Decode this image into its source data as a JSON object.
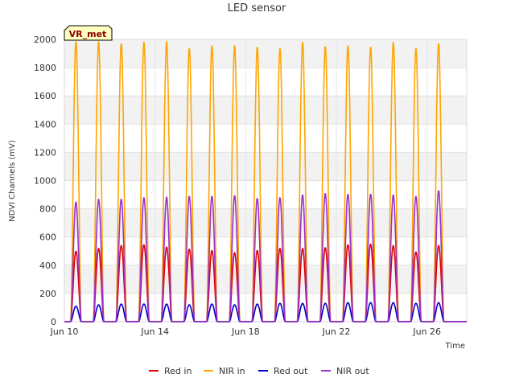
{
  "chart_data": {
    "type": "line",
    "title": "LED sensor",
    "xlabel": "Time",
    "ylabel": "NDVI Channels (mV)",
    "ylim": [
      0,
      2000
    ],
    "yticks": [
      0,
      200,
      400,
      600,
      800,
      1000,
      1200,
      1400,
      1600,
      1800,
      2000
    ],
    "xlim": [
      "2023-06-10",
      "2023-06-27T18:00"
    ],
    "xticks": [
      {
        "date": "2023-06-10",
        "label": "Jun 10"
      },
      {
        "date": "2023-06-14",
        "label": "Jun 14"
      },
      {
        "date": "2023-06-18",
        "label": "Jun 18"
      },
      {
        "date": "2023-06-22",
        "label": "Jun 22"
      },
      {
        "date": "2023-06-26",
        "label": "Jun 26"
      }
    ],
    "grid": true,
    "legend_position": "bottom",
    "badge": "VR_met",
    "x": [
      "2023-06-10",
      "2023-06-11",
      "2023-06-12",
      "2023-06-13",
      "2023-06-14",
      "2023-06-15",
      "2023-06-16",
      "2023-06-17",
      "2023-06-18",
      "2023-06-19",
      "2023-06-20",
      "2023-06-21",
      "2023-06-22",
      "2023-06-23",
      "2023-06-24",
      "2023-06-25",
      "2023-06-26",
      "2023-06-27"
    ],
    "series": [
      {
        "name": "Red in",
        "color": "#dd0000",
        "values": [
          500,
          520,
          540,
          545,
          530,
          515,
          505,
          490,
          505,
          520,
          520,
          525,
          545,
          550,
          540,
          495,
          540,
          0
        ]
      },
      {
        "name": "NIR in",
        "color": "#ffa500",
        "values": [
          1990,
          1990,
          1975,
          1985,
          1990,
          1940,
          1960,
          1960,
          1950,
          1940,
          1985,
          1955,
          1960,
          1950,
          1985,
          1940,
          1975,
          0
        ]
      },
      {
        "name": "Red out",
        "color": "#0000cc",
        "values": [
          110,
          120,
          125,
          125,
          125,
          120,
          125,
          120,
          125,
          130,
          130,
          130,
          135,
          135,
          135,
          130,
          135,
          0
        ]
      },
      {
        "name": "NIR out",
        "color": "#9932cc",
        "values": [
          850,
          870,
          870,
          880,
          885,
          890,
          890,
          895,
          875,
          880,
          900,
          910,
          905,
          905,
          900,
          890,
          930,
          0
        ]
      }
    ]
  }
}
